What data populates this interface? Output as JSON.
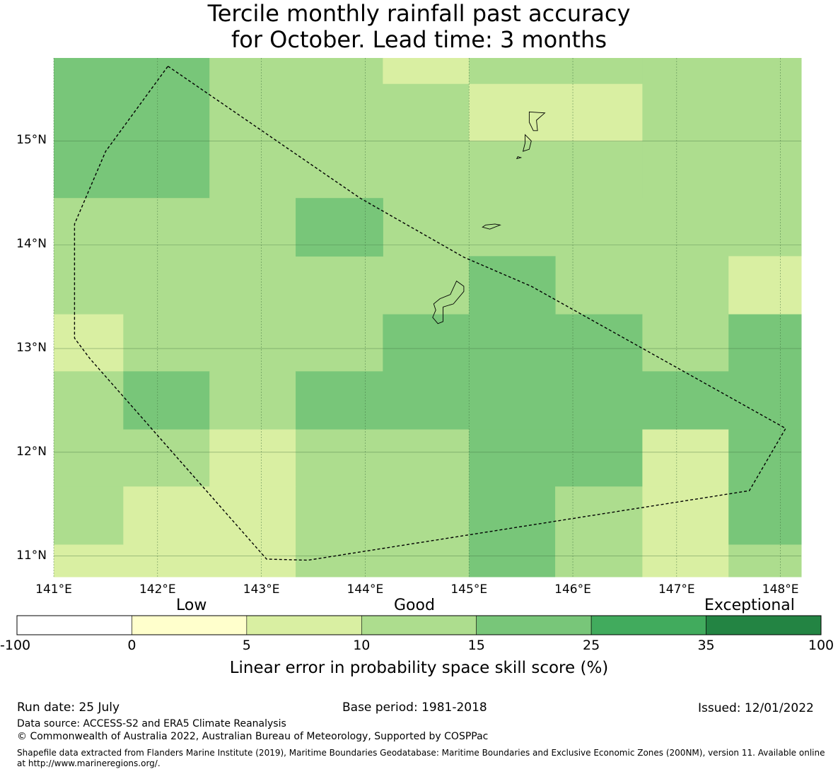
{
  "title": {
    "line1": "Tercile monthly rainfall past accuracy",
    "line2": "for October. Lead time: 3 months"
  },
  "map": {
    "x_ticks": [
      "141°E",
      "142°E",
      "143°E",
      "144°E",
      "145°E",
      "146°E",
      "147°E",
      "148°E"
    ],
    "y_ticks": [
      "15°N",
      "14°N",
      "13°N",
      "12°N",
      "11°N"
    ],
    "x_tick_values": [
      141,
      142,
      143,
      144,
      145,
      146,
      147,
      148
    ],
    "y_tick_values": [
      15,
      14,
      13,
      12,
      11
    ],
    "lon_range": [
      141.0,
      148.2
    ],
    "lat_range": [
      10.8,
      15.8
    ],
    "grid": true,
    "cells": [
      {
        "lon": [
          141.0,
          142.5
        ],
        "lat": [
          14.45,
          15.8
        ],
        "cat": 15
      },
      {
        "lon": [
          142.5,
          144.17
        ],
        "lat": [
          14.45,
          15.8
        ],
        "cat": 10
      },
      {
        "lon": [
          144.17,
          145.0
        ],
        "lat": [
          15.55,
          15.8
        ],
        "cat": 5
      },
      {
        "lon": [
          144.17,
          145.0
        ],
        "lat": [
          14.45,
          15.55
        ],
        "cat": 10
      },
      {
        "lon": [
          145.0,
          146.67
        ],
        "lat": [
          14.45,
          15.8
        ],
        "cat": 10
      },
      {
        "lon": [
          145.0,
          146.67
        ],
        "lat": [
          15.0,
          15.55
        ],
        "cat": 5
      },
      {
        "lon": [
          146.67,
          148.2
        ],
        "lat": [
          14.45,
          15.8
        ],
        "cat": 10
      },
      {
        "lon": [
          141.0,
          148.2
        ],
        "lat": [
          13.33,
          14.45
        ],
        "cat": 10
      },
      {
        "lon": [
          143.33,
          144.17
        ],
        "lat": [
          13.89,
          14.45
        ],
        "cat": 15
      },
      {
        "lon": [
          145.0,
          145.83
        ],
        "lat": [
          13.33,
          13.89
        ],
        "cat": 15
      },
      {
        "lon": [
          147.5,
          148.2
        ],
        "lat": [
          13.33,
          13.89
        ],
        "cat": 5
      },
      {
        "lon": [
          141.0,
          141.67
        ],
        "lat": [
          12.78,
          13.33
        ],
        "cat": 5
      },
      {
        "lon": [
          141.67,
          144.17
        ],
        "lat": [
          12.78,
          13.33
        ],
        "cat": 10
      },
      {
        "lon": [
          144.17,
          146.67
        ],
        "lat": [
          12.78,
          13.33
        ],
        "cat": 15
      },
      {
        "lon": [
          146.67,
          147.5
        ],
        "lat": [
          12.78,
          13.33
        ],
        "cat": 10
      },
      {
        "lon": [
          147.5,
          148.2
        ],
        "lat": [
          12.78,
          13.33
        ],
        "cat": 15
      },
      {
        "lon": [
          141.0,
          141.67
        ],
        "lat": [
          12.22,
          12.78
        ],
        "cat": 10
      },
      {
        "lon": [
          141.67,
          142.5
        ],
        "lat": [
          12.22,
          12.78
        ],
        "cat": 15
      },
      {
        "lon": [
          142.5,
          143.33
        ],
        "lat": [
          12.22,
          12.78
        ],
        "cat": 10
      },
      {
        "lon": [
          143.33,
          148.2
        ],
        "lat": [
          12.22,
          12.78
        ],
        "cat": 15
      },
      {
        "lon": [
          141.0,
          142.5
        ],
        "lat": [
          11.67,
          12.22
        ],
        "cat": 10
      },
      {
        "lon": [
          142.5,
          143.33
        ],
        "lat": [
          11.67,
          12.22
        ],
        "cat": 5
      },
      {
        "lon": [
          143.33,
          145.0
        ],
        "lat": [
          11.67,
          12.22
        ],
        "cat": 10
      },
      {
        "lon": [
          145.0,
          146.67
        ],
        "lat": [
          11.67,
          12.22
        ],
        "cat": 15
      },
      {
        "lon": [
          146.67,
          147.5
        ],
        "lat": [
          11.67,
          12.22
        ],
        "cat": 5
      },
      {
        "lon": [
          147.5,
          148.2
        ],
        "lat": [
          11.67,
          12.22
        ],
        "cat": 15
      },
      {
        "lon": [
          141.0,
          141.67
        ],
        "lat": [
          11.11,
          11.67
        ],
        "cat": 10
      },
      {
        "lon": [
          141.67,
          143.33
        ],
        "lat": [
          11.11,
          11.67
        ],
        "cat": 5
      },
      {
        "lon": [
          143.33,
          145.0
        ],
        "lat": [
          11.11,
          11.67
        ],
        "cat": 10
      },
      {
        "lon": [
          145.0,
          145.83
        ],
        "lat": [
          11.11,
          11.67
        ],
        "cat": 15
      },
      {
        "lon": [
          145.83,
          146.67
        ],
        "lat": [
          11.11,
          11.67
        ],
        "cat": 10
      },
      {
        "lon": [
          146.67,
          147.5
        ],
        "lat": [
          11.11,
          11.67
        ],
        "cat": 5
      },
      {
        "lon": [
          147.5,
          148.2
        ],
        "lat": [
          11.11,
          11.67
        ],
        "cat": 15
      },
      {
        "lon": [
          141.0,
          143.33
        ],
        "lat": [
          10.8,
          11.11
        ],
        "cat": 5
      },
      {
        "lon": [
          143.33,
          145.0
        ],
        "lat": [
          10.8,
          11.11
        ],
        "cat": 10
      },
      {
        "lon": [
          145.0,
          145.83
        ],
        "lat": [
          10.8,
          11.11
        ],
        "cat": 15
      },
      {
        "lon": [
          145.83,
          146.67
        ],
        "lat": [
          10.8,
          11.11
        ],
        "cat": 10
      },
      {
        "lon": [
          146.67,
          147.5
        ],
        "lat": [
          10.8,
          11.11
        ],
        "cat": 5
      },
      {
        "lon": [
          147.5,
          148.2
        ],
        "lat": [
          10.8,
          11.11
        ],
        "cat": 10
      }
    ],
    "eez_boundary": [
      [
        142.1,
        15.72
      ],
      [
        143.95,
        14.45
      ],
      [
        144.95,
        13.88
      ],
      [
        145.6,
        13.6
      ],
      [
        148.05,
        12.23
      ],
      [
        147.7,
        11.63
      ],
      [
        143.45,
        10.96
      ],
      [
        143.05,
        10.97
      ],
      [
        141.35,
        12.9
      ],
      [
        141.2,
        13.1
      ],
      [
        141.2,
        14.2
      ],
      [
        141.5,
        14.9
      ],
      [
        142.1,
        15.72
      ]
    ],
    "islands": [
      [
        [
          144.95,
          13.6
        ],
        [
          144.88,
          13.65
        ],
        [
          144.82,
          13.52
        ],
        [
          144.72,
          13.48
        ],
        [
          144.66,
          13.43
        ],
        [
          144.68,
          13.37
        ],
        [
          144.65,
          13.3
        ],
        [
          144.7,
          13.24
        ],
        [
          144.75,
          13.26
        ],
        [
          144.75,
          13.4
        ],
        [
          144.85,
          13.43
        ],
        [
          144.95,
          13.55
        ]
      ],
      [
        [
          145.58,
          15.28
        ],
        [
          145.73,
          15.27
        ],
        [
          145.65,
          15.2
        ],
        [
          145.66,
          15.1
        ],
        [
          145.62,
          15.1
        ],
        [
          145.58,
          15.18
        ]
      ],
      [
        [
          145.54,
          15.06
        ],
        [
          145.6,
          15.0
        ],
        [
          145.58,
          14.92
        ],
        [
          145.52,
          14.9
        ],
        [
          145.54,
          14.98
        ]
      ],
      [
        [
          145.47,
          14.85
        ],
        [
          145.5,
          14.84
        ],
        [
          145.46,
          14.83
        ]
      ],
      [
        [
          145.13,
          14.17
        ],
        [
          145.2,
          14.15
        ],
        [
          145.3,
          14.19
        ],
        [
          145.25,
          14.2
        ],
        [
          145.16,
          14.19
        ]
      ]
    ],
    "colors": {
      "5": "#d9efa2",
      "10": "#addd8e",
      "15": "#78c679"
    }
  },
  "colorbar": {
    "category_labels": [
      "Low",
      "Good",
      "Exceptional"
    ],
    "tick_labels": [
      "-100",
      "0",
      "5",
      "10",
      "15",
      "25",
      "35",
      "100"
    ],
    "segment_colors": [
      "#ffffff",
      "#ffffcc",
      "#d9efa2",
      "#addd8e",
      "#78c679",
      "#41ab5d",
      "#238443"
    ],
    "title": "Linear error in probability space skill score (%)"
  },
  "footer": {
    "run_date": "Run date: 25 July",
    "base_period": "Base period: 1981-2018",
    "issued": "Issued: 12/01/2022",
    "data_source": "Data source: ACCESS-S2 and ERA5 Climate Reanalysis",
    "copyright": "© Commonwealth of Australia 2022, Australian Bureau of Meteorology, Supported by COSPPac",
    "shapefile_line1": "Shapefile data extracted from Flanders Marine Institute (2019), Maritime Boundaries Geodatabase: Maritime Boundaries and Exclusive Economic Zones (200NM), version 11. Available online",
    "shapefile_line2": "at http://www.marineregions.org/."
  }
}
